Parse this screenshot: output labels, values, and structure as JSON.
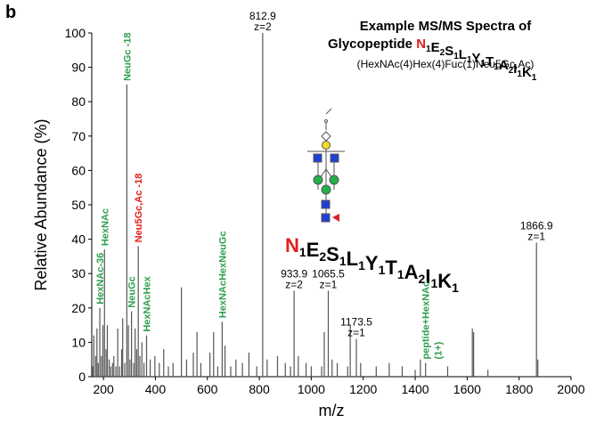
{
  "panel_label": "b",
  "chart_data": {
    "type": "stem",
    "title": [
      "Example MS/MS Spectra of",
      "Glycopeptide"
    ],
    "peptide": [
      {
        "letter": "N",
        "sub": "1"
      },
      {
        "letter": "E",
        "sub": "2"
      },
      {
        "letter": "S",
        "sub": "1"
      },
      {
        "letter": "L",
        "sub": "1"
      },
      {
        "letter": "Y",
        "sub": "1"
      },
      {
        "letter": "T",
        "sub": "1"
      },
      {
        "letter": "A",
        "sub": "2"
      },
      {
        "letter": "I",
        "sub": "1"
      },
      {
        "letter": "K",
        "sub": "1"
      }
    ],
    "glycosite_color": "#e0201b",
    "composition": "(HexNAc(4)Hex(4)Fuc(1)Neu5Gc,Ac)",
    "x_label": "m/z",
    "y_label": "Relative Abundance (%)",
    "xlim": [
      155,
      2000
    ],
    "ylim": [
      0,
      100
    ],
    "xticks": [
      200,
      400,
      600,
      800,
      1000,
      1200,
      1400,
      1600,
      1800,
      2000
    ],
    "yticks": [
      0,
      10,
      20,
      30,
      40,
      50,
      60,
      70,
      80,
      90,
      100
    ],
    "color": "#555555",
    "x": [
      158,
      163,
      170,
      175,
      180,
      186,
      192,
      198,
      204,
      210,
      215,
      222,
      228,
      235,
      240,
      248,
      255,
      262,
      270,
      274,
      282,
      290,
      296,
      302,
      308,
      316,
      322,
      328,
      334,
      340,
      348,
      356,
      366,
      380,
      398,
      415,
      432,
      450,
      468,
      500,
      520,
      546,
      560,
      575,
      610,
      624,
      640,
      657,
      668,
      690,
      710,
      735,
      760,
      790,
      812.9,
      830,
      870,
      900,
      920,
      933.9,
      950,
      980,
      1000,
      1040,
      1050,
      1065.5,
      1080,
      1100,
      1140,
      1150,
      1173.5,
      1190,
      1250,
      1300,
      1350,
      1400,
      1420,
      1440,
      1525,
      1620,
      1625,
      1680,
      1866.9,
      1872
    ],
    "values": [
      3,
      12,
      6,
      14,
      4,
      20,
      6,
      15,
      37,
      8,
      15,
      5,
      3,
      4,
      6,
      3,
      14,
      3,
      8,
      17,
      4,
      85,
      15,
      5,
      19,
      4,
      14,
      8,
      38,
      6,
      10,
      4,
      12,
      5,
      6,
      4,
      8,
      3,
      4,
      26,
      5,
      7,
      13,
      4,
      7,
      13,
      3,
      16,
      9,
      3,
      5,
      4,
      7,
      3,
      100,
      5,
      6,
      4,
      3,
      25,
      6,
      4,
      3,
      3,
      13,
      25,
      5,
      4,
      3,
      15,
      11,
      4,
      3,
      4,
      3,
      2,
      5,
      4,
      3,
      14,
      13,
      2,
      39,
      5
    ],
    "peak_labels": [
      {
        "x": 812.9,
        "lines": [
          "812.9",
          "z=2"
        ]
      },
      {
        "x": 933.9,
        "lines": [
          "933.9",
          "z=2"
        ]
      },
      {
        "x": 1065.5,
        "lines": [
          "1065.5",
          "z=1"
        ]
      },
      {
        "x": 1173.5,
        "lines": [
          "1173.5",
          "z=1"
        ]
      },
      {
        "x": 1866.9,
        "lines": [
          "1866.9",
          "z=1"
        ]
      }
    ],
    "annotations": [
      {
        "x": 186,
        "text": "HexNAc-36",
        "color": "#2e9e4f"
      },
      {
        "x": 204,
        "text": "HexNAc",
        "color": "#2e9e4f"
      },
      {
        "x": 290,
        "text": "NeuGc -18",
        "color": "#2e9e4f"
      },
      {
        "x": 308,
        "text": "NeuGc",
        "color": "#2e9e4f"
      },
      {
        "x": 334,
        "text": "Neu5Gc,Ac -18",
        "color": "#e0201b"
      },
      {
        "x": 366,
        "text": "HexNAcHex",
        "color": "#2e9e4f"
      },
      {
        "x": 657,
        "text": "HexNAcHexNeuGc",
        "color": "#2e9e4f"
      },
      {
        "x": 1440,
        "text": "peptide+HexNAc",
        "color": "#2e9e4f"
      }
    ],
    "annotation_extra": {
      "x": 1440,
      "text": "(1+)",
      "color": "#2e9e4f"
    }
  }
}
